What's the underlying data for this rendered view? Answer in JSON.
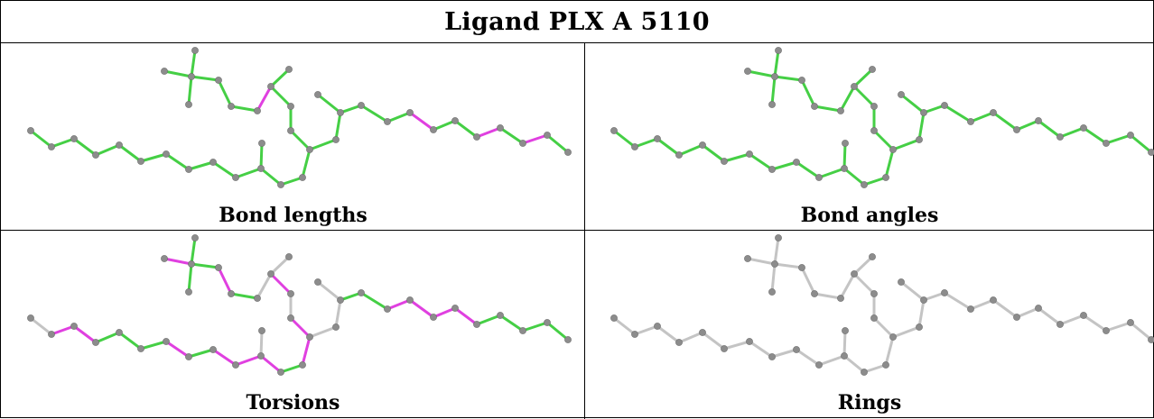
{
  "title": "Ligand PLX A 5110",
  "colors": {
    "atom": "#8c8c8c",
    "ok": "#45cf45",
    "outlier": "#e040e0",
    "unassessed": "#c4c4c4"
  },
  "panels": [
    {
      "label": "Bond lengths",
      "bond_status": [
        "ok",
        "ok",
        "ok",
        "ok",
        "ok",
        "ok",
        "ok",
        "ok",
        "ok",
        "ok",
        "ok",
        "ok",
        "ok",
        "ok",
        "ok",
        "ok",
        "outlier",
        "ok",
        "ok",
        "ok",
        "ok",
        "ok",
        "ok",
        "ok",
        "ok",
        "ok",
        "ok",
        "ok",
        "ok",
        "ok",
        "ok",
        "outlier",
        "ok",
        "ok",
        "outlier",
        "ok",
        "outlier",
        "ok",
        "ok",
        "ok",
        "ok",
        "ok",
        "ok",
        "ok",
        "ok",
        "ok",
        "ok",
        "ok"
      ]
    },
    {
      "label": "Bond angles",
      "bond_status": [
        "ok",
        "ok",
        "ok",
        "ok",
        "ok",
        "ok",
        "ok",
        "ok",
        "ok",
        "ok",
        "ok",
        "ok",
        "ok",
        "ok",
        "ok",
        "ok",
        "ok",
        "ok",
        "ok",
        "ok",
        "ok",
        "ok",
        "ok",
        "ok",
        "ok",
        "ok",
        "ok",
        "ok",
        "ok",
        "ok",
        "ok",
        "ok",
        "ok",
        "ok",
        "ok",
        "ok",
        "ok",
        "ok",
        "ok",
        "ok",
        "ok",
        "ok",
        "ok",
        "ok",
        "ok",
        "ok",
        "ok",
        "ok"
      ]
    },
    {
      "label": "Torsions",
      "bond_status": [
        "unassessed",
        "outlier",
        "outlier",
        "ok",
        "ok",
        "ok",
        "outlier",
        "ok",
        "outlier",
        "outlier",
        "outlier",
        "ok",
        "outlier",
        "outlier",
        "unassessed",
        "outlier",
        "unassessed",
        "ok",
        "outlier",
        "ok",
        "ok",
        "outlier",
        "ok",
        "unassessed",
        "unassessed",
        "unassessed",
        "unassessed",
        "unassessed",
        "ok",
        "ok",
        "outlier",
        "outlier",
        "outlier",
        "outlier",
        "ok",
        "ok",
        "ok",
        "ok",
        "outlier",
        "ok",
        "outlier",
        "outlier",
        "outlier",
        "ok",
        "ok",
        "ok",
        "ok",
        "unassessed"
      ]
    },
    {
      "label": "Rings",
      "bond_status": [
        "unassessed",
        "unassessed",
        "unassessed",
        "unassessed",
        "unassessed",
        "unassessed",
        "unassessed",
        "unassessed",
        "unassessed",
        "unassessed",
        "unassessed",
        "unassessed",
        "unassessed",
        "unassessed",
        "unassessed",
        "unassessed",
        "unassessed",
        "unassessed",
        "unassessed",
        "unassessed",
        "unassessed",
        "unassessed",
        "unassessed",
        "unassessed",
        "unassessed",
        "unassessed",
        "unassessed",
        "unassessed",
        "unassessed",
        "unassessed",
        "unassessed",
        "unassessed",
        "unassessed",
        "unassessed",
        "unassessed",
        "unassessed",
        "unassessed",
        "unassessed",
        "unassessed",
        "unassessed",
        "unassessed",
        "unassessed",
        "unassessed",
        "unassessed",
        "unassessed",
        "unassessed",
        "unassessed",
        "unassessed"
      ]
    }
  ]
}
